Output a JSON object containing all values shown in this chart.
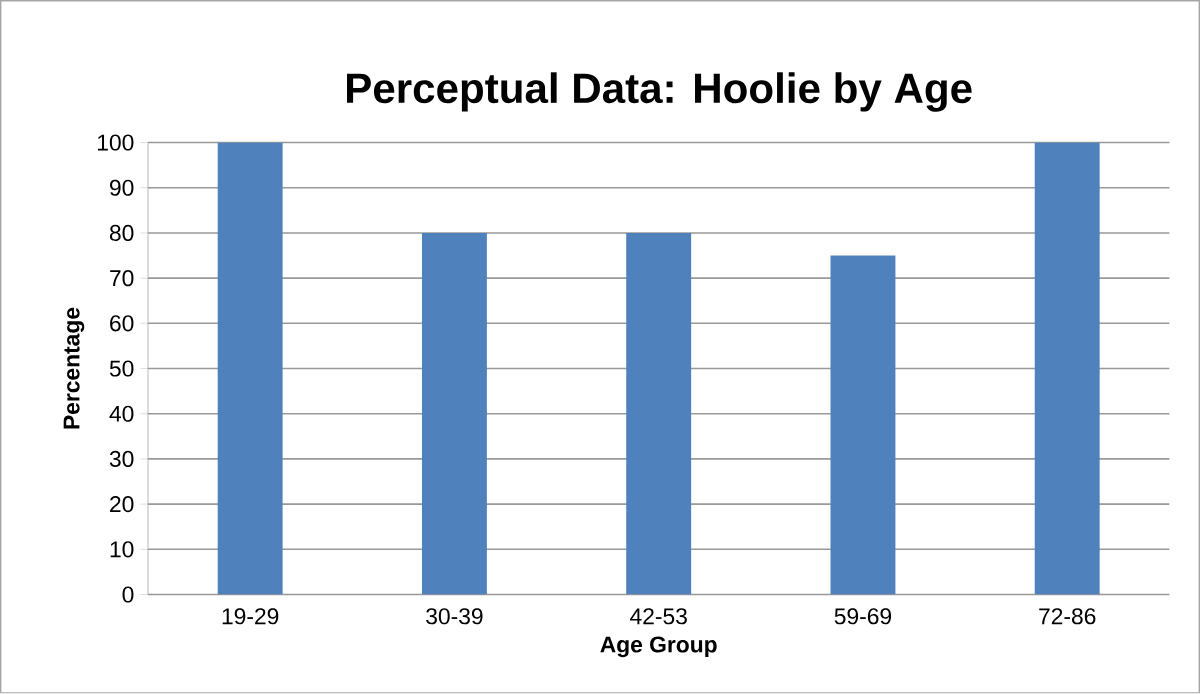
{
  "chart_data": {
    "type": "bar",
    "title": "Perceptual Data: Hoolie by Age",
    "xlabel": "Age Group",
    "ylabel": "Percentage",
    "categories": [
      "19-29",
      "30-39",
      "42-53",
      "59-69",
      "72-86"
    ],
    "values": [
      100,
      80,
      80,
      75,
      100
    ],
    "color": "#4f81bd",
    "ylim": [
      0,
      100
    ],
    "yticks": [
      0,
      10,
      20,
      30,
      40,
      50,
      60,
      70,
      80,
      90,
      100
    ],
    "grid": "y"
  }
}
